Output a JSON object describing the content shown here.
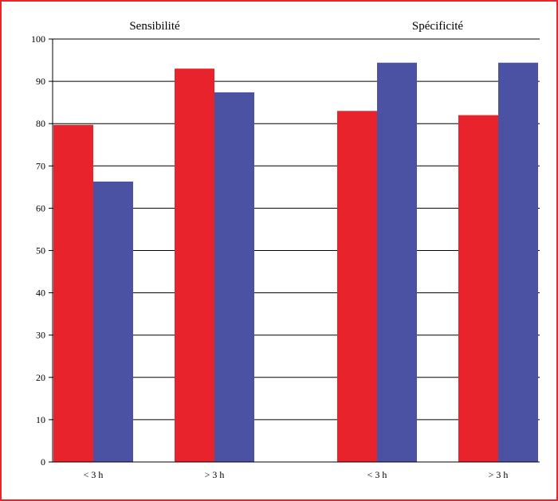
{
  "chart_data": {
    "type": "bar",
    "groups": [
      {
        "title": "Sensibilité",
        "categories": [
          "< 3 h",
          "> 3 h"
        ],
        "series": [
          {
            "color": "#e8232b",
            "values": [
              79.7,
              93.0
            ]
          },
          {
            "color": "#4b51a3",
            "values": [
              66.3,
              87.4
            ]
          }
        ]
      },
      {
        "title": "Spécificité",
        "categories": [
          "< 3 h",
          "> 3 h"
        ],
        "series": [
          {
            "color": "#e8232b",
            "values": [
              83.0,
              82.0
            ]
          },
          {
            "color": "#4b51a3",
            "values": [
              94.4,
              94.4
            ]
          }
        ]
      }
    ],
    "yticks": [
      0,
      10,
      20,
      30,
      40,
      50,
      60,
      70,
      80,
      90,
      100
    ],
    "ylim": [
      0,
      100
    ],
    "grid": true,
    "xlabel": "",
    "ylabel": "",
    "legend": "none"
  },
  "colors": {
    "border": "#e8262b",
    "red": "#e8232b",
    "blue": "#4b51a3"
  }
}
